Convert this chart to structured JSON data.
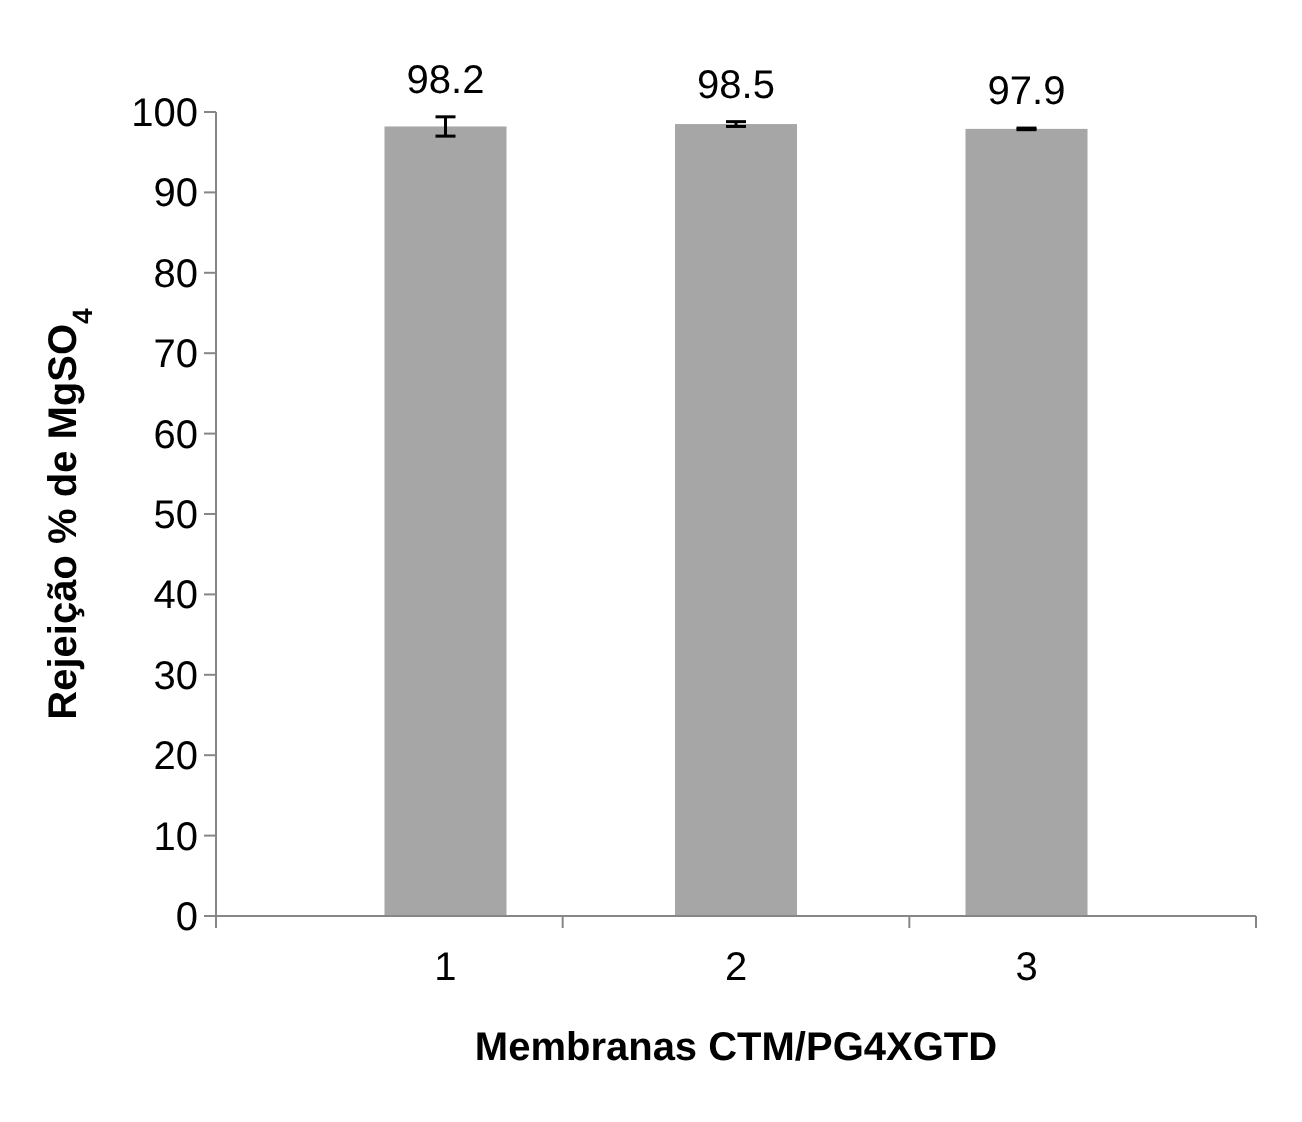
{
  "chart_data": {
    "type": "bar",
    "xlabel": "Membranas CTM/PG4XGTD",
    "ylabel": "Rejeição % de MgSO$_{4}$",
    "categories": [
      "1",
      "2",
      "3"
    ],
    "values": [
      98.2,
      98.5,
      97.9
    ],
    "errors": [
      1.2,
      0.3,
      0.1
    ],
    "color": "#a6a6a6",
    "data_labels": true,
    "ylim": [
      0,
      100
    ],
    "yticks": [
      0,
      10,
      20,
      30,
      40,
      50,
      60,
      70,
      80,
      90,
      100
    ],
    "grid": false
  }
}
